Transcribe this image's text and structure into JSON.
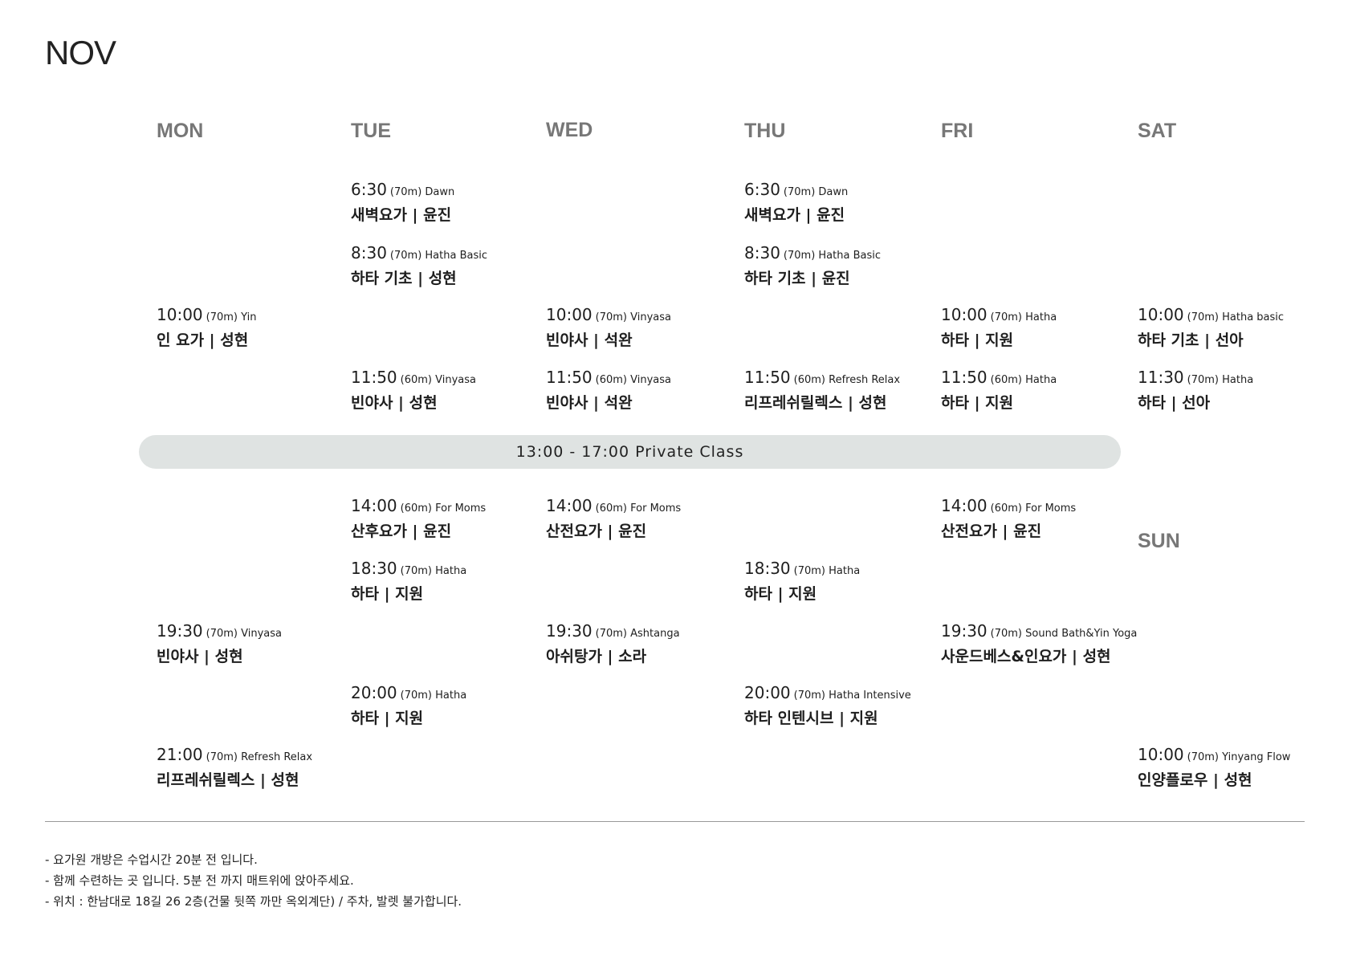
{
  "month": "NOV",
  "days": [
    "MON",
    "TUE",
    "WED",
    "THU",
    "FRI",
    "SAT",
    "SUN"
  ],
  "private_class": "13:00 - 17:00  Private Class",
  "classes": [
    {
      "day": "TUE",
      "slot": 0,
      "time": "6:30",
      "info": "(70m) Dawn",
      "name": "새벽요가  | 윤진"
    },
    {
      "day": "THU",
      "slot": 0,
      "time": "6:30",
      "info": "(70m) Dawn",
      "name": "새벽요가  | 윤진"
    },
    {
      "day": "TUE",
      "slot": 1,
      "time": "8:30",
      "info": "(70m) Hatha Basic",
      "name": "하타 기초  |  성현"
    },
    {
      "day": "THU",
      "slot": 1,
      "time": "8:30",
      "info": "(70m) Hatha Basic",
      "name": "하타 기초  | 윤진"
    },
    {
      "day": "MON",
      "slot": 2,
      "time": "10:00",
      "info": "(70m) Yin",
      "name": "인 요가 | 성현"
    },
    {
      "day": "WED",
      "slot": 2,
      "time": "10:00",
      "info": "(70m) Vinyasa",
      "name": "빈야사  |  석완"
    },
    {
      "day": "FRI",
      "slot": 2,
      "time": "10:00",
      "info": "(70m) Hatha",
      "name": "하타  | 지원"
    },
    {
      "day": "SAT",
      "slot": 2,
      "time": "10:00",
      "info": "(70m) Hatha basic",
      "name": "하타 기초  | 선아"
    },
    {
      "day": "TUE",
      "slot": 3,
      "time": "11:50",
      "info": "(60m) Vinyasa",
      "name": "빈야사  | 성현"
    },
    {
      "day": "WED",
      "slot": 3,
      "time": "11:50",
      "info": "(60m) Vinyasa",
      "name": "빈야사  |  석완"
    },
    {
      "day": "THU",
      "slot": 3,
      "time": "11:50",
      "info": "(60m) Refresh Relax",
      "name": "리프레쉬릴렉스 | 성현"
    },
    {
      "day": "FRI",
      "slot": 3,
      "time": "11:50",
      "info": "(60m) Hatha",
      "name": "하타  | 지원"
    },
    {
      "day": "SAT",
      "slot": 3,
      "time": "11:30",
      "info": "(70m) Hatha",
      "name": "하타  | 선아"
    },
    {
      "day": "TUE",
      "slot": 4,
      "time": "14:00",
      "info": "(60m)  For Moms",
      "name": "산후요가  | 윤진"
    },
    {
      "day": "WED",
      "slot": 4,
      "time": "14:00",
      "info": "(60m)  For Moms",
      "name": "산전요가  | 윤진"
    },
    {
      "day": "FRI",
      "slot": 4,
      "time": "14:00",
      "info": "(60m) For Moms",
      "name": "산전요가  | 윤진"
    },
    {
      "day": "TUE",
      "slot": 5,
      "time": "18:30",
      "info": "(70m) Hatha",
      "name": "하타 | 지원"
    },
    {
      "day": "THU",
      "slot": 5,
      "time": "18:30",
      "info": "(70m) Hatha",
      "name": "하타 | 지원"
    },
    {
      "day": "MON",
      "slot": 6,
      "time": "19:30",
      "info": "(70m) Vinyasa",
      "name": "빈야사 | 성현"
    },
    {
      "day": "WED",
      "slot": 6,
      "time": "19:30",
      "info": "(70m) Ashtanga",
      "name": "아쉬탕가  | 소라"
    },
    {
      "day": "FRI",
      "slot": 6,
      "time": "19:30",
      "info": "(70m) Sound Bath&Yin Yoga",
      "name": "사운드베스&인요가  | 성현"
    },
    {
      "day": "TUE",
      "slot": 7,
      "time": "20:00",
      "info": "(70m) Hatha",
      "name": "하타 | 지원"
    },
    {
      "day": "THU",
      "slot": 7,
      "time": "20:00",
      "info": "(70m) Hatha Intensive",
      "name": "하타 인텐시브 | 지원"
    },
    {
      "day": "MON",
      "slot": 8,
      "time": "21:00",
      "info": "(70m) Refresh Relax",
      "name": "리프레쉬릴렉스 | 성현"
    },
    {
      "day": "SUN",
      "slot": 8,
      "time": "10:00",
      "info": "(70m) Yinyang Flow",
      "name": "인양플로우  |  성현"
    }
  ],
  "notes": [
    "-  요가원 개방은 수업시간 20분 전 입니다.",
    "-  함께 수련하는 곳 입니다. 5분 전 까지 매트위에 앉아주세요.",
    "-  위치 : 한남대로 18길 26 2층(건물 뒷쪽 까만 옥외계단) / 주차, 발렛 불가합니다."
  ]
}
